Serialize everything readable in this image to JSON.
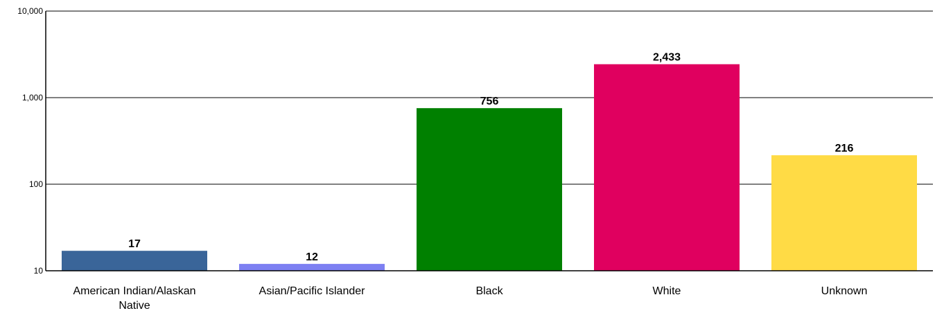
{
  "chart_data": {
    "type": "bar",
    "title": "",
    "xlabel": "",
    "ylabel": "",
    "yscale": "log",
    "ylim": [
      10,
      10000
    ],
    "yticks": [
      10,
      100,
      1000,
      10000
    ],
    "ytick_labels": [
      "10",
      "100",
      "1,000",
      "10,000"
    ],
    "grid": "horizontal",
    "legend": "none",
    "categories": [
      "American Indian/Alaskan Native",
      "Asian/Pacific Islander",
      "Black",
      "White",
      "Unknown"
    ],
    "category_lines": [
      [
        "American Indian/Alaskan",
        "Native"
      ],
      [
        "Asian/Pacific Islander"
      ],
      [
        "Black"
      ],
      [
        "White"
      ],
      [
        "Unknown"
      ]
    ],
    "values": [
      17,
      12,
      756,
      2433,
      216
    ],
    "value_labels": [
      "17",
      "12",
      "756",
      "2,433",
      "216"
    ],
    "colors": [
      "#3a6599",
      "#7d80f2",
      "#008000",
      "#e0005f",
      "#ffdb45"
    ]
  }
}
